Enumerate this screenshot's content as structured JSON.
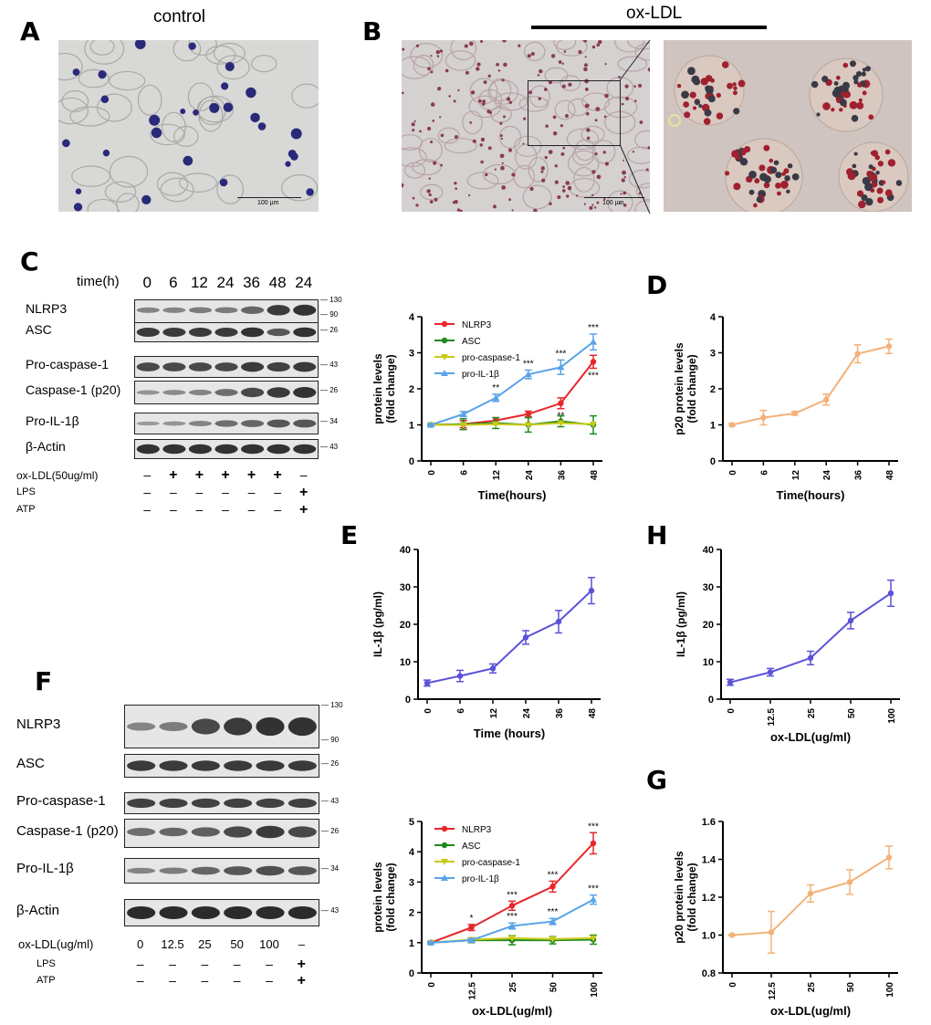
{
  "panels": {
    "A": {
      "label": "A",
      "title": "control",
      "scale": "100 µm"
    },
    "B": {
      "label": "B",
      "title": "ox-LDL",
      "scale": "100 µm"
    },
    "C": {
      "label": "C",
      "time_label": "time(h)",
      "times": [
        "0",
        "6",
        "12",
        "24",
        "36",
        "48",
        "24"
      ],
      "rows": [
        {
          "label": "NLRP3",
          "mw": [
            "130",
            "90"
          ]
        },
        {
          "label": "ASC",
          "mw": [
            "26"
          ]
        },
        {
          "label": "Pro-caspase-1",
          "mw": [
            "43"
          ]
        },
        {
          "label": "Caspase-1 (p20)",
          "mw": [
            "26"
          ]
        },
        {
          "label": "Pro-IL-1β",
          "mw": [
            "34"
          ]
        },
        {
          "label": "β-Actin",
          "mw": [
            "43"
          ]
        }
      ],
      "treatments": [
        {
          "label": "ox-LDL(50ug/ml)",
          "marks": [
            "–",
            "+",
            "+",
            "+",
            "+",
            "+",
            "–"
          ]
        },
        {
          "label": "LPS",
          "marks": [
            "–",
            "–",
            "–",
            "–",
            "–",
            "–",
            "+"
          ]
        },
        {
          "label": "ATP",
          "marks": [
            "–",
            "–",
            "–",
            "–",
            "–",
            "–",
            "+"
          ]
        }
      ]
    },
    "D": {
      "label": "D"
    },
    "E": {
      "label": "E"
    },
    "E2": {
      "label": "E"
    },
    "F": {
      "label": "F",
      "conc_label": "ox-LDL(ug/ml)",
      "concs": [
        "0",
        "12.5",
        "25",
        "50",
        "100",
        "–"
      ],
      "rows": [
        {
          "label": "NLRP3",
          "mw": [
            "130",
            "90"
          ]
        },
        {
          "label": "ASC",
          "mw": [
            "26"
          ]
        },
        {
          "label": "Pro-caspase-1",
          "mw": [
            "43"
          ]
        },
        {
          "label": "Caspase-1 (p20)",
          "mw": [
            "26"
          ]
        },
        {
          "label": "Pro-IL-1β",
          "mw": [
            "34"
          ]
        },
        {
          "label": "β-Actin",
          "mw": [
            "43"
          ]
        }
      ],
      "treatments": [
        {
          "label": "LPS",
          "marks": [
            "–",
            "–",
            "–",
            "–",
            "–",
            "+"
          ]
        },
        {
          "label": "ATP",
          "marks": [
            "–",
            "–",
            "–",
            "–",
            "–",
            "+"
          ]
        }
      ]
    },
    "G": {
      "label": "G"
    },
    "H": {
      "label": "H"
    }
  },
  "chart_data": [
    {
      "id": "C-quant",
      "type": "line",
      "title": "",
      "xlabel": "Time(hours)",
      "ylabel": "protein levels\n(fold change)",
      "categories": [
        "0",
        "6",
        "12",
        "24",
        "36",
        "48"
      ],
      "ylim": [
        0,
        4
      ],
      "yticks": [
        "0",
        "1",
        "2",
        "3",
        "4"
      ],
      "legend": [
        "NLRP3",
        "ASC",
        "pro-caspase-1",
        "pro-IL-1β"
      ],
      "legend_placement": "top-left",
      "series": [
        {
          "name": "NLRP3",
          "color": "#e8262a",
          "values": [
            1,
            1.02,
            1.12,
            1.3,
            1.6,
            2.75
          ],
          "err": [
            0.03,
            0.1,
            0.08,
            0.08,
            0.15,
            0.18
          ],
          "stars": [
            "",
            "",
            "",
            "*",
            "**",
            "***"
          ],
          "star_side": "below"
        },
        {
          "name": "ASC",
          "color": "#1e8a1e",
          "values": [
            1,
            1.02,
            1.05,
            1.0,
            1.1,
            1.0
          ],
          "err": [
            0.03,
            0.15,
            0.15,
            0.2,
            0.15,
            0.25
          ]
        },
        {
          "name": "pro-caspase-1",
          "color": "#c9c91a",
          "values": [
            1,
            1.0,
            1.02,
            1.0,
            1.05,
            1.02
          ],
          "err": [
            0,
            0,
            0,
            0,
            0,
            0
          ]
        },
        {
          "name": "pro-IL-1β",
          "color": "#5aa3e8",
          "values": [
            1,
            1.3,
            1.75,
            2.4,
            2.6,
            3.3
          ],
          "err": [
            0.03,
            0.07,
            0.1,
            0.12,
            0.2,
            0.22
          ],
          "stars": [
            "",
            "",
            "**",
            "***",
            "***",
            "***"
          ],
          "star_side": "above"
        }
      ]
    },
    {
      "id": "D",
      "type": "line",
      "title": "",
      "xlabel": "Time(hours)",
      "ylabel": "p20 protein levels\n(fold change)",
      "categories": [
        "0",
        "6",
        "12",
        "24",
        "36",
        "48"
      ],
      "ylim": [
        0,
        4
      ],
      "yticks": [
        "0",
        "1",
        "2",
        "3",
        "4"
      ],
      "series": [
        {
          "name": "",
          "color": "#f2b27a",
          "values": [
            1,
            1.2,
            1.32,
            1.7,
            2.97,
            3.18
          ],
          "err": [
            0.03,
            0.2,
            0.05,
            0.15,
            0.25,
            0.2
          ]
        }
      ]
    },
    {
      "id": "E",
      "type": "line",
      "title": "",
      "xlabel": "Time (hours)",
      "ylabel": "IL-1β  (pg/ml)",
      "categories": [
        "0",
        "6",
        "12",
        "24",
        "36",
        "48"
      ],
      "ylim": [
        0,
        40
      ],
      "yticks": [
        "0",
        "10",
        "20",
        "30",
        "40"
      ],
      "series": [
        {
          "name": "",
          "color": "#5a52d9",
          "values": [
            4.3,
            6.2,
            8.2,
            16.5,
            20.7,
            29
          ],
          "err": [
            0.8,
            1.5,
            1.2,
            1.8,
            3,
            3.5
          ]
        }
      ]
    },
    {
      "id": "H",
      "type": "line",
      "title": "",
      "xlabel": "ox-LDL(ug/ml)",
      "ylabel": "IL-1β  (pg/ml)",
      "categories": [
        "0",
        "12.5",
        "25",
        "50",
        "100"
      ],
      "ylim": [
        0,
        40
      ],
      "yticks": [
        "0",
        "10",
        "20",
        "30",
        "40"
      ],
      "series": [
        {
          "name": "",
          "color": "#5a52d9",
          "values": [
            4.5,
            7.2,
            11,
            21,
            28.3
          ],
          "err": [
            0.8,
            1,
            1.8,
            2.2,
            3.5
          ]
        }
      ]
    },
    {
      "id": "E2",
      "type": "line",
      "title": "",
      "xlabel": "ox-LDL(ug/ml)",
      "ylabel": "protein levels\n(fold change)",
      "categories": [
        "0",
        "12.5",
        "25",
        "50",
        "100"
      ],
      "ylim": [
        0,
        5
      ],
      "yticks": [
        "0",
        "1",
        "2",
        "3",
        "4",
        "5"
      ],
      "legend": [
        "NLRP3",
        "ASC",
        "pro-caspase-1",
        "pro-IL-1β"
      ],
      "legend_placement": "top-left",
      "series": [
        {
          "name": "NLRP3",
          "color": "#e8262a",
          "values": [
            1,
            1.5,
            2.22,
            2.85,
            4.28
          ],
          "err": [
            0.03,
            0.1,
            0.15,
            0.18,
            0.35
          ],
          "stars": [
            "",
            "*",
            "***",
            "***",
            "***"
          ],
          "star_side": "above"
        },
        {
          "name": "ASC",
          "color": "#1e8a1e",
          "values": [
            1,
            1.08,
            1.08,
            1.08,
            1.1
          ],
          "err": [
            0.03,
            0.08,
            0.15,
            0.12,
            0.15
          ]
        },
        {
          "name": "pro-caspase-1",
          "color": "#c9c91a",
          "values": [
            1,
            1.1,
            1.15,
            1.12,
            1.15
          ],
          "err": [
            0,
            0,
            0,
            0,
            0
          ]
        },
        {
          "name": "pro-IL-1β",
          "color": "#5aa3e8",
          "values": [
            1,
            1.08,
            1.55,
            1.7,
            2.42
          ],
          "err": [
            0.03,
            0.05,
            0.1,
            0.1,
            0.15
          ],
          "stars": [
            "",
            "",
            "***",
            "***",
            "***"
          ],
          "star_side": "above"
        }
      ]
    },
    {
      "id": "G",
      "type": "line",
      "title": "",
      "xlabel": "ox-LDL(ug/ml)",
      "ylabel": "p20 protein levels\n(fold change)",
      "categories": [
        "0",
        "12.5",
        "25",
        "50",
        "100"
      ],
      "ylim": [
        0.8,
        1.6
      ],
      "yticks": [
        "0.8",
        "1.0",
        "1.2",
        "1.4",
        "1.6"
      ],
      "series": [
        {
          "name": "",
          "color": "#f2b27a",
          "values": [
            1.0,
            1.015,
            1.22,
            1.28,
            1.41
          ],
          "err": [
            0.003,
            0.11,
            0.045,
            0.065,
            0.06
          ]
        }
      ]
    }
  ]
}
